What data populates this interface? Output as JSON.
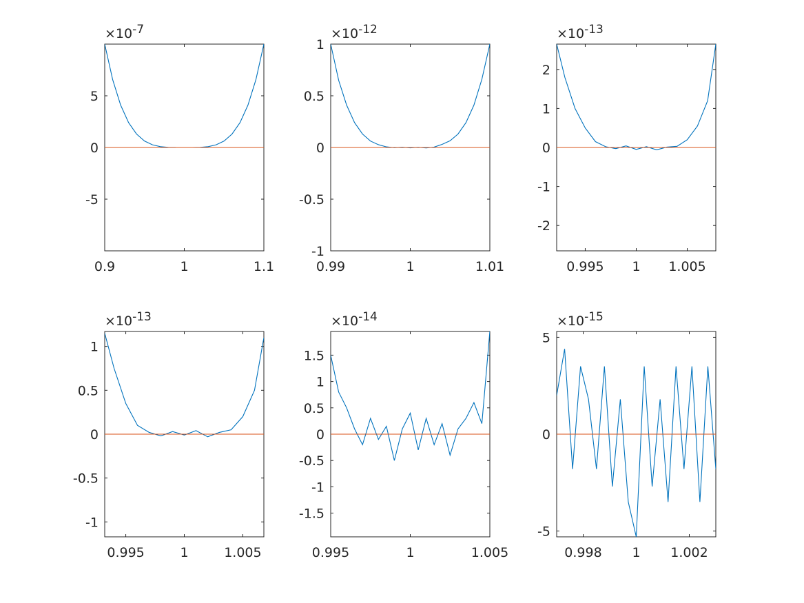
{
  "figure": {
    "colors": {
      "series": "#0072bd",
      "reference": "#d95319",
      "axis": "#262626"
    }
  },
  "chart_data": [
    {
      "type": "line",
      "exponent_label": "×10",
      "exponent": "-7",
      "xlim": [
        0.9,
        1.1
      ],
      "ylim": [
        -10,
        10
      ],
      "xticks": [
        0.9,
        1,
        1.1
      ],
      "xtick_labels": [
        "0.9",
        "1",
        "1.1"
      ],
      "yticks": [
        -5,
        0,
        5
      ],
      "ytick_labels": [
        "-5",
        "0",
        "5"
      ],
      "series": [
        {
          "role": "data",
          "x": [
            0.9,
            0.91,
            0.92,
            0.93,
            0.94,
            0.95,
            0.96,
            0.97,
            0.98,
            0.99,
            1.0,
            1.01,
            1.02,
            1.03,
            1.04,
            1.05,
            1.06,
            1.07,
            1.08,
            1.09,
            1.1
          ],
          "y": [
            10,
            6.56,
            4.1,
            2.4,
            1.3,
            0.625,
            0.256,
            0.081,
            0.016,
            0.001,
            0,
            0.001,
            0.016,
            0.081,
            0.256,
            0.625,
            1.3,
            2.4,
            4.1,
            6.56,
            10
          ]
        },
        {
          "role": "reference",
          "x": [
            0.9,
            1.1
          ],
          "y": [
            0,
            0
          ]
        }
      ]
    },
    {
      "type": "line",
      "exponent_label": "×10",
      "exponent": "-12",
      "xlim": [
        0.99,
        1.01
      ],
      "ylim": [
        -1,
        1
      ],
      "xticks": [
        0.99,
        1,
        1.01
      ],
      "xtick_labels": [
        "0.99",
        "1",
        "1.01"
      ],
      "yticks": [
        -1,
        -0.5,
        0,
        0.5,
        1
      ],
      "ytick_labels": [
        "-1",
        "-0.5",
        "0",
        "0.5",
        "1"
      ],
      "series": [
        {
          "role": "data",
          "x": [
            0.99,
            0.991,
            0.992,
            0.993,
            0.994,
            0.995,
            0.996,
            0.997,
            0.998,
            0.999,
            1.0,
            1.001,
            1.002,
            1.003,
            1.004,
            1.005,
            1.006,
            1.007,
            1.008,
            1.009,
            1.01
          ],
          "y": [
            1,
            0.65,
            0.41,
            0.24,
            0.13,
            0.062,
            0.027,
            0.006,
            -0.002,
            0.003,
            -0.004,
            0.002,
            -0.005,
            0.004,
            0.03,
            0.065,
            0.13,
            0.24,
            0.41,
            0.66,
            1
          ]
        },
        {
          "role": "reference",
          "x": [
            0.99,
            1.01
          ],
          "y": [
            0,
            0
          ]
        }
      ]
    },
    {
      "type": "line",
      "exponent_label": "×10",
      "exponent": "-13",
      "xlim": [
        0.9922,
        1.0078
      ],
      "ylim": [
        -2.65,
        2.65
      ],
      "xticks": [
        0.995,
        1,
        1.005
      ],
      "xtick_labels": [
        "0.995",
        "1",
        "1.005"
      ],
      "yticks": [
        -2,
        -1,
        0,
        1,
        2
      ],
      "ytick_labels": [
        "-2",
        "-1",
        "0",
        "1",
        "2"
      ],
      "series": [
        {
          "role": "data",
          "x": [
            0.9922,
            0.993,
            0.994,
            0.995,
            0.996,
            0.997,
            0.998,
            0.999,
            1.0,
            1.001,
            1.002,
            1.003,
            1.004,
            1.005,
            1.006,
            1.007,
            1.0078
          ],
          "y": [
            2.65,
            1.8,
            1.0,
            0.5,
            0.15,
            0.02,
            -0.03,
            0.04,
            -0.05,
            0.02,
            -0.06,
            0.01,
            0.03,
            0.2,
            0.55,
            1.2,
            2.65
          ]
        },
        {
          "role": "reference",
          "x": [
            0.9922,
            1.0078
          ],
          "y": [
            0,
            0
          ]
        }
      ]
    },
    {
      "type": "line",
      "exponent_label": "×10",
      "exponent": "-13",
      "xlim": [
        0.9932,
        1.0068
      ],
      "ylim": [
        -1.17,
        1.17
      ],
      "xticks": [
        0.995,
        1,
        1.005
      ],
      "xtick_labels": [
        "0.995",
        "1",
        "1.005"
      ],
      "yticks": [
        -1,
        -0.5,
        0,
        0.5,
        1
      ],
      "ytick_labels": [
        "-1",
        "-0.5",
        "0",
        "0.5",
        "1"
      ],
      "series": [
        {
          "role": "data",
          "x": [
            0.9932,
            0.994,
            0.995,
            0.996,
            0.997,
            0.998,
            0.999,
            1.0,
            1.001,
            1.002,
            1.003,
            1.004,
            1.005,
            1.006,
            1.0068
          ],
          "y": [
            1.15,
            0.75,
            0.35,
            0.1,
            0.02,
            -0.02,
            0.03,
            -0.01,
            0.04,
            -0.03,
            0.02,
            0.05,
            0.2,
            0.5,
            1.1
          ]
        },
        {
          "role": "reference",
          "x": [
            0.9932,
            1.0068
          ],
          "y": [
            0,
            0
          ]
        }
      ]
    },
    {
      "type": "line",
      "exponent_label": "×10",
      "exponent": "-14",
      "xlim": [
        0.995,
        1.005
      ],
      "ylim": [
        -1.95,
        1.95
      ],
      "xticks": [
        0.995,
        1,
        1.005
      ],
      "xtick_labels": [
        "0.995",
        "1",
        "1.005"
      ],
      "yticks": [
        -1.5,
        -1,
        -0.5,
        0,
        0.5,
        1,
        1.5
      ],
      "ytick_labels": [
        "-1.5",
        "-1",
        "-0.5",
        "0",
        "0.5",
        "1",
        "1.5"
      ],
      "series": [
        {
          "role": "data",
          "x": [
            0.995,
            0.9955,
            0.996,
            0.9965,
            0.997,
            0.9975,
            0.998,
            0.9985,
            0.999,
            0.9995,
            1.0,
            1.0005,
            1.001,
            1.0015,
            1.002,
            1.0025,
            1.003,
            1.0035,
            1.004,
            1.0045,
            1.005
          ],
          "y": [
            1.5,
            0.8,
            0.5,
            0.1,
            -0.2,
            0.3,
            -0.1,
            0.15,
            -0.5,
            0.1,
            0.4,
            -0.3,
            0.3,
            -0.2,
            0.2,
            -0.4,
            0.1,
            0.3,
            0.6,
            0.2,
            1.95
          ]
        },
        {
          "role": "reference",
          "x": [
            0.995,
            1.005
          ],
          "y": [
            0,
            0
          ]
        }
      ]
    },
    {
      "type": "line",
      "exponent_label": "×10",
      "exponent": "-15",
      "xlim": [
        0.997,
        1.003
      ],
      "ylim": [
        -5.3,
        5.3
      ],
      "xticks": [
        0.998,
        1,
        1.002
      ],
      "xtick_labels": [
        "0.998",
        "1",
        "1.002"
      ],
      "yticks": [
        -5,
        0,
        5
      ],
      "ytick_labels": [
        "-5",
        "0",
        "5"
      ],
      "series": [
        {
          "role": "data",
          "x": [
            0.997,
            0.9973,
            0.9976,
            0.9979,
            0.9982,
            0.9985,
            0.9988,
            0.9991,
            0.9994,
            0.9997,
            1.0,
            1.0003,
            1.0006,
            1.0009,
            1.0012,
            1.0015,
            1.0018,
            1.0021,
            1.0024,
            1.0027,
            1.003
          ],
          "y": [
            2,
            4.4,
            -1.8,
            3.5,
            1.8,
            -1.8,
            3.5,
            -2.7,
            1.8,
            -3.5,
            -5.3,
            3.5,
            -2.7,
            1.8,
            -3.5,
            3.5,
            -1.8,
            3.5,
            -3.5,
            3.5,
            -1.8
          ]
        },
        {
          "role": "reference",
          "x": [
            0.997,
            1.003
          ],
          "y": [
            0,
            0
          ]
        }
      ]
    }
  ]
}
